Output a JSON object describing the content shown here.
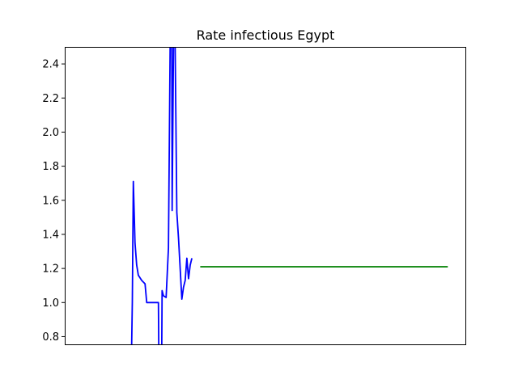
{
  "chart_data": {
    "type": "line",
    "title": "Rate infectious Egypt",
    "xlabel": "",
    "ylabel": "",
    "xlim": [
      0,
      120
    ],
    "ylim": [
      0.75,
      2.5
    ],
    "grid": false,
    "x_ticks_shown": false,
    "y_ticks": [
      "0.8",
      "1.0",
      "1.2",
      "1.4",
      "1.6",
      "1.8",
      "2.0",
      "2.2",
      "2.4"
    ],
    "series": [
      {
        "color": "#0000ff",
        "x": [
          20,
          20.2,
          20.5,
          21,
          21.5,
          22,
          23,
          24,
          24.5,
          26,
          27,
          28,
          28.1,
          28.2,
          29,
          29.1,
          29.5,
          30.3,
          31,
          31.5,
          32,
          32.1,
          32.5,
          33,
          33.5,
          34,
          35,
          35.5,
          36,
          36.5,
          37,
          37.5,
          38
        ],
        "y": [
          0.75,
          1.0,
          1.71,
          1.35,
          1.22,
          1.16,
          1.13,
          1.11,
          1.0,
          1.0,
          1.0,
          1.0,
          0.75,
          0.75,
          0.75,
          1.07,
          1.04,
          1.03,
          1.32,
          2.5,
          2.5,
          1.54,
          2.5,
          2.5,
          1.53,
          1.38,
          1.02,
          1.09,
          1.13,
          1.26,
          1.14,
          1.22,
          1.26
        ]
      },
      {
        "color": "#008000",
        "x": [
          40.5,
          114.5
        ],
        "y": [
          1.21,
          1.21
        ]
      }
    ]
  }
}
